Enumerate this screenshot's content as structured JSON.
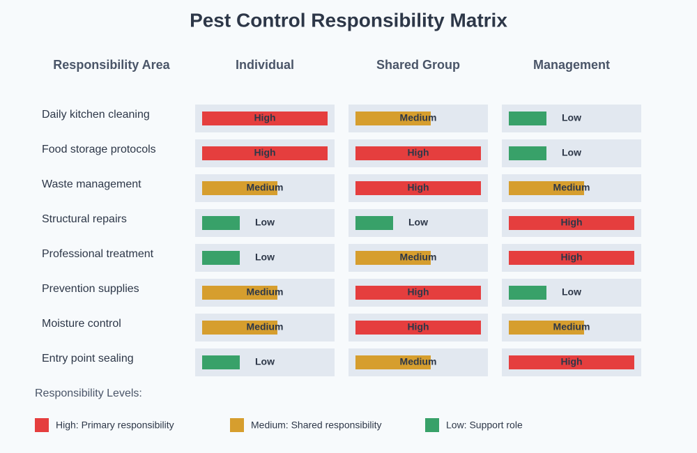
{
  "title": "Pest Control Responsibility Matrix",
  "table": {
    "columns": [
      "Responsibility Area",
      "Individual",
      "Shared Group",
      "Management"
    ],
    "rows": [
      [
        "Daily kitchen cleaning",
        "High",
        "Medium",
        "Low"
      ],
      [
        "Food storage protocols",
        "High",
        "High",
        "Low"
      ],
      [
        "Waste management",
        "Medium",
        "High",
        "Medium"
      ],
      [
        "Structural repairs",
        "Low",
        "Low",
        "High"
      ],
      [
        "Professional treatment",
        "Low",
        "Medium",
        "High"
      ],
      [
        "Prevention supplies",
        "Medium",
        "High",
        "Low"
      ],
      [
        "Moisture control",
        "Medium",
        "High",
        "Medium"
      ],
      [
        "Entry point sealing",
        "Low",
        "Medium",
        "High"
      ]
    ]
  },
  "legend": {
    "title": "Responsibility Levels:",
    "items": [
      {
        "label": "High: Primary responsibility",
        "color": "#e53e3e"
      },
      {
        "label": "Medium: Shared responsibility",
        "color": "#d69e2e"
      },
      {
        "label": "Low: Support role",
        "color": "#38a169"
      }
    ]
  }
}
